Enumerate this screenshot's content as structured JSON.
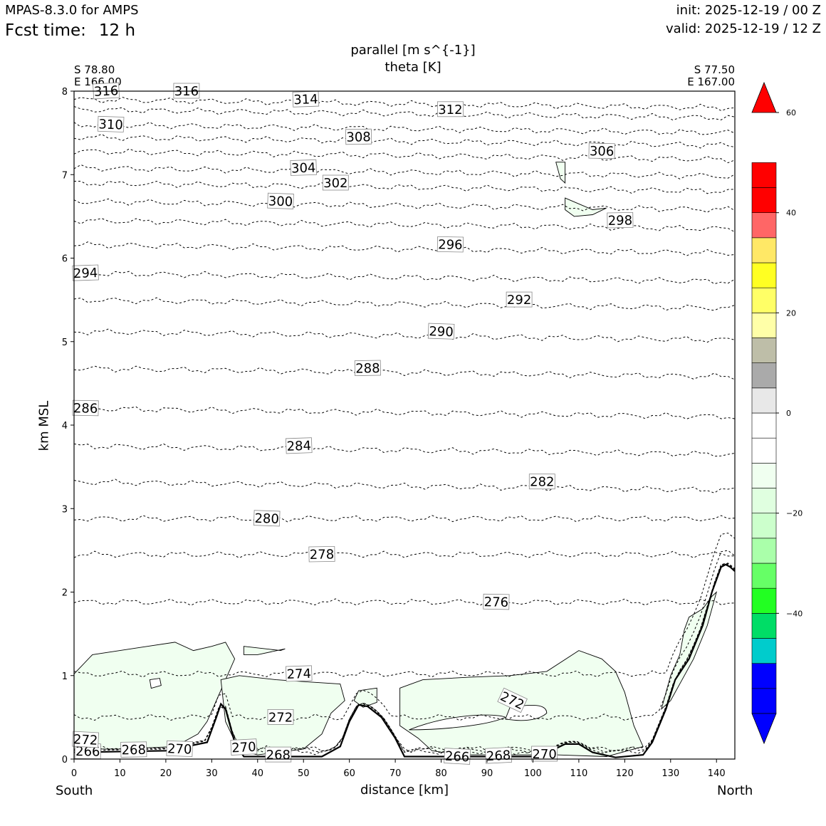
{
  "header": {
    "model": "MPAS-8.3.0 for AMPS",
    "fcst_label": "Fcst time:",
    "fcst_value": "12 h",
    "init": "init: 2025-12-19 / 00 Z",
    "valid": "valid: 2025-12-19 / 12 Z"
  },
  "endpoints": {
    "left_lat": "S 78.80",
    "left_lon": "E 166.00",
    "right_lat": "S 77.50",
    "right_lon": "E 167.00",
    "left_dir": "South",
    "right_dir": "North"
  },
  "chart_data": {
    "type": "cross-section contour",
    "title": "parallel [m s^{-1}]",
    "subtitle": "theta [K]",
    "xlabel": "distance [km]",
    "ylabel": "km MSL",
    "xlim": [
      0,
      144
    ],
    "ylim": [
      0,
      8
    ],
    "xticks": [
      0,
      10,
      20,
      30,
      40,
      50,
      60,
      70,
      80,
      90,
      100,
      110,
      120,
      130,
      140
    ],
    "yticks": [
      0,
      1,
      2,
      3,
      4,
      5,
      6,
      7,
      8
    ],
    "terrain_km": [
      [
        0,
        0.08
      ],
      [
        20,
        0.1
      ],
      [
        29,
        0.2
      ],
      [
        31,
        0.5
      ],
      [
        32,
        0.66
      ],
      [
        33,
        0.6
      ],
      [
        35,
        0.2
      ],
      [
        37,
        0.03
      ],
      [
        54,
        0.03
      ],
      [
        58,
        0.15
      ],
      [
        60,
        0.45
      ],
      [
        62,
        0.65
      ],
      [
        64,
        0.63
      ],
      [
        67,
        0.5
      ],
      [
        70,
        0.25
      ],
      [
        72,
        0.03
      ],
      [
        100,
        0.03
      ],
      [
        104,
        0.1
      ],
      [
        107,
        0.18
      ],
      [
        110,
        0.18
      ],
      [
        113,
        0.08
      ],
      [
        118,
        0.02
      ],
      [
        124,
        0.05
      ],
      [
        126,
        0.2
      ],
      [
        129,
        0.6
      ],
      [
        131,
        0.95
      ],
      [
        134,
        1.2
      ],
      [
        137,
        1.6
      ],
      [
        139,
        2.0
      ],
      [
        141,
        2.3
      ],
      [
        142,
        2.33
      ],
      [
        143,
        2.3
      ],
      [
        144,
        2.25
      ]
    ],
    "theta_contours": [
      {
        "label": "314",
        "y": 7.9,
        "label_x": 50.5
      },
      {
        "label": "312",
        "y": 7.78,
        "label_x": 82
      },
      {
        "label": "310",
        "y": 7.6,
        "label_x": 8
      },
      {
        "label": "308",
        "y": 7.45,
        "label_x": 62
      },
      {
        "label": "306",
        "y": 7.28,
        "label_x": 115
      },
      {
        "label": "304",
        "y": 7.08,
        "label_x": 50
      },
      {
        "label": "302",
        "y": 6.9,
        "label_x": 57
      },
      {
        "label": "300",
        "y": 6.68,
        "label_x": 45
      },
      {
        "label": "298",
        "y": 6.45,
        "label_x": 119
      },
      {
        "label": "296",
        "y": 6.16,
        "label_x": 82
      },
      {
        "label": "294",
        "y": 5.82,
        "label_x": 2.5
      },
      {
        "label": "292",
        "y": 5.5,
        "label_x": 97
      },
      {
        "label": "290",
        "y": 5.12,
        "label_x": 80
      },
      {
        "label": "288",
        "y": 4.68,
        "label_x": 64
      },
      {
        "label": "286",
        "y": 4.2,
        "label_x": 2.5
      },
      {
        "label": "284",
        "y": 3.75,
        "label_x": 49
      },
      {
        "label": "282",
        "y": 3.32,
        "label_x": 102
      },
      {
        "label": "280",
        "y": 2.88,
        "label_x": 42
      },
      {
        "label": "278",
        "y": 2.45,
        "label_x": 54
      },
      {
        "label": "276",
        "y": 1.88,
        "label_x": 92
      },
      {
        "label": "274",
        "y": 1.02,
        "label_x": 49
      },
      {
        "label": "272",
        "y": 0.5,
        "label_x": 45
      },
      {
        "label": "270",
        "y": 0.12,
        "label_x": 23
      },
      {
        "label": "268",
        "y": 0.11,
        "label_x": 13
      },
      {
        "label": "266",
        "y": 0.09,
        "label_x": 3
      }
    ],
    "extra_contour_labels": [
      {
        "label": "316",
        "x": 7,
        "y": 8.0
      },
      {
        "label": "316",
        "x": 24.5,
        "y": 8.0
      },
      {
        "label": "272",
        "x": 2.5,
        "y": 0.23
      },
      {
        "label": "270",
        "x": 37,
        "y": 0.14
      },
      {
        "label": "268",
        "x": 44.5,
        "y": 0.05
      },
      {
        "label": "266",
        "x": 83.5,
        "y": 0.03
      },
      {
        "label": "268",
        "x": 92.5,
        "y": 0.04
      },
      {
        "label": "270",
        "x": 102.5,
        "y": 0.06
      },
      {
        "label": "272",
        "x": 95.5,
        "y": 0.7
      }
    ],
    "colorbar": {
      "ticks": [
        "60",
        "40",
        "20",
        "0",
        "−20",
        "−40"
      ],
      "tick_values": [
        60,
        40,
        20,
        0,
        -20,
        -40
      ],
      "range": [
        -60,
        60
      ],
      "step": 5,
      "colors": [
        "#0000ff",
        "#0000ff",
        "#0000ff",
        "#00cccc",
        "#00dd66",
        "#22ff22",
        "#66ff66",
        "#aaffaa",
        "#ccffcc",
        "#e0ffe0",
        "#f0fff0",
        "#ffffff",
        "#ffffff",
        "#e8e8e8",
        "#aaaaaa",
        "#bebea8",
        "#ffffa8",
        "#ffff66",
        "#ffff22",
        "#ffe866",
        "#ff6666",
        "#ff0000",
        "#ff0000",
        "#ff0000"
      ]
    },
    "shaded_fill": "#f0fff0"
  }
}
